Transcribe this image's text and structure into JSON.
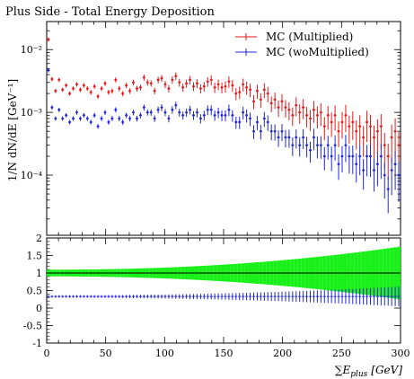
{
  "title": "Plus Side - Total Energy Deposition",
  "ylabel": "1/N dN/dE [GeV⁻¹]",
  "xlabel": "∑E",
  "xlabel_sub": "plus",
  "xlabel_unit": "[GeV]",
  "colors": {
    "mc_multiplied": "#e8191b",
    "mc_womultiplied": "#1f28d9",
    "band": "#19f019",
    "ratio_ref": "#000000"
  },
  "chart_data": [
    {
      "type": "scatter",
      "title": "Plus Side - Total Energy Deposition",
      "xlabel": "∑E_plus [GeV]",
      "ylabel": "1/N dN/dE [GeV^-1]",
      "yscale": "log",
      "xlim": [
        0,
        300
      ],
      "ylim": [
        1.1e-05,
        0.028
      ],
      "ytick_labels": [
        "10⁻⁴",
        "10⁻³",
        "10⁻²"
      ],
      "legend_position": "top-right",
      "legend": [
        "MC (Multiplied)",
        "MC (woMultiplied)"
      ],
      "series": [
        {
          "name": "MC (Multiplied)",
          "x": [
            1.5,
            4.5,
            7.5,
            10.5,
            13.5,
            16.5,
            19.5,
            22.5,
            25.5,
            28.5,
            31.5,
            34.5,
            37.5,
            40.5,
            43.5,
            46.5,
            49.5,
            52.5,
            55.5,
            58.5,
            61.5,
            64.5,
            67.5,
            70.5,
            73.5,
            76.5,
            79.5,
            82.5,
            85.5,
            88.5,
            91.5,
            94.5,
            97.5,
            100.5,
            103.5,
            106.5,
            109.5,
            112.5,
            115.5,
            118.5,
            121.5,
            124.5,
            127.5,
            130.5,
            133.5,
            136.5,
            139.5,
            142.5,
            145.5,
            148.5,
            151.5,
            154.5,
            157.5,
            160.5,
            163.5,
            166.5,
            169.5,
            172.5,
            175.5,
            178.5,
            181.5,
            184.5,
            187.5,
            190.5,
            193.5,
            196.5,
            199.5,
            202.5,
            205.5,
            208.5,
            211.5,
            214.5,
            217.5,
            220.5,
            223.5,
            226.5,
            229.5,
            232.5,
            235.5,
            238.5,
            241.5,
            244.5,
            247.5,
            250.5,
            253.5,
            256.5,
            259.5,
            262.5,
            265.5,
            268.5,
            271.5,
            274.5,
            277.5,
            280.5,
            283.5,
            286.5,
            289.5,
            292.5,
            295.5,
            298.5
          ],
          "y": [
            0.0145,
            0.0034,
            0.0022,
            0.0033,
            0.0023,
            0.0027,
            0.002,
            0.0024,
            0.0028,
            0.0023,
            0.0027,
            0.0024,
            0.0021,
            0.0026,
            0.0018,
            0.0024,
            0.0029,
            0.0021,
            0.0022,
            0.0033,
            0.0024,
            0.002,
            0.0027,
            0.0022,
            0.003,
            0.0024,
            0.0025,
            0.0036,
            0.003,
            0.0029,
            0.0022,
            0.0033,
            0.0035,
            0.0028,
            0.0024,
            0.0033,
            0.0038,
            0.003,
            0.0025,
            0.0029,
            0.0033,
            0.0026,
            0.0029,
            0.0024,
            0.0026,
            0.0031,
            0.0033,
            0.0025,
            0.0028,
            0.0025,
            0.0026,
            0.0031,
            0.0027,
            0.002,
            0.0021,
            0.0028,
            0.0025,
            0.0023,
            0.0015,
            0.0022,
            0.0016,
            0.0023,
            0.002,
            0.0014,
            0.0016,
            0.0012,
            0.0015,
            0.0012,
            0.0011,
            0.0009,
            0.0013,
            0.001,
            0.0012,
            0.0009,
            0.0008,
            0.0011,
            0.0009,
            0.001,
            0.0006,
            0.0009,
            0.0007,
            0.0009,
            0.0005,
            0.0007,
            0.0009,
            0.0006,
            0.0007,
            0.0005,
            0.0006,
            0.0004,
            0.0007,
            0.0006,
            0.0004,
            0.0005,
            0.0006,
            0.0003,
            0.0002,
            0.0004,
            0.0005,
            0.0003
          ]
        },
        {
          "name": "MC (woMultiplied)",
          "x": [
            1.5,
            4.5,
            7.5,
            10.5,
            13.5,
            16.5,
            19.5,
            22.5,
            25.5,
            28.5,
            31.5,
            34.5,
            37.5,
            40.5,
            43.5,
            46.5,
            49.5,
            52.5,
            55.5,
            58.5,
            61.5,
            64.5,
            67.5,
            70.5,
            73.5,
            76.5,
            79.5,
            82.5,
            85.5,
            88.5,
            91.5,
            94.5,
            97.5,
            100.5,
            103.5,
            106.5,
            109.5,
            112.5,
            115.5,
            118.5,
            121.5,
            124.5,
            127.5,
            130.5,
            133.5,
            136.5,
            139.5,
            142.5,
            145.5,
            148.5,
            151.5,
            154.5,
            157.5,
            160.5,
            163.5,
            166.5,
            169.5,
            172.5,
            175.5,
            178.5,
            181.5,
            184.5,
            187.5,
            190.5,
            193.5,
            196.5,
            199.5,
            202.5,
            205.5,
            208.5,
            211.5,
            214.5,
            217.5,
            220.5,
            223.5,
            226.5,
            229.5,
            232.5,
            235.5,
            238.5,
            241.5,
            244.5,
            247.5,
            250.5,
            253.5,
            256.5,
            259.5,
            262.5,
            265.5,
            268.5,
            271.5,
            274.5,
            277.5,
            280.5,
            283.5,
            286.5,
            289.5,
            292.5,
            295.5,
            298.5
          ],
          "y": [
            0.0047,
            0.0012,
            0.0008,
            0.0011,
            0.0008,
            0.0009,
            0.0007,
            0.0008,
            0.001,
            0.0008,
            0.0009,
            0.0008,
            0.0007,
            0.0009,
            0.0006,
            0.0008,
            0.001,
            0.0007,
            0.0008,
            0.0011,
            0.0008,
            0.0007,
            0.0009,
            0.0008,
            0.001,
            0.0008,
            0.0009,
            0.0012,
            0.001,
            0.001,
            0.0008,
            0.0011,
            0.0012,
            0.001,
            0.0008,
            0.0011,
            0.0013,
            0.001,
            0.0009,
            0.001,
            0.0011,
            0.0009,
            0.001,
            0.0008,
            0.0009,
            0.0011,
            0.0011,
            0.0009,
            0.001,
            0.0009,
            0.0009,
            0.0011,
            0.0009,
            0.0007,
            0.0007,
            0.001,
            0.0009,
            0.0008,
            0.0005,
            0.0007,
            0.0005,
            0.0008,
            0.0007,
            0.0005,
            0.0005,
            0.0004,
            0.0005,
            0.0004,
            0.0004,
            0.0003,
            0.0004,
            0.0003,
            0.0004,
            0.0003,
            0.00025,
            0.0004,
            0.0003,
            0.0003,
            0.0002,
            0.0003,
            0.0002,
            0.0003,
            0.00015,
            0.0002,
            0.0003,
            0.0002,
            0.0002,
            0.00015,
            0.0002,
            0.00012,
            0.0002,
            0.0002,
            0.00012,
            0.00015,
            0.0002,
            0.0001,
            6e-05,
            0.00012,
            0.00015,
            0.0001
          ]
        }
      ]
    },
    {
      "type": "scatter",
      "xlabel": "∑E_plus [GeV]",
      "xlim": [
        0,
        300
      ],
      "ylim": [
        -1,
        2
      ],
      "xticks": [
        0,
        50,
        100,
        150,
        200,
        250,
        300
      ],
      "yticks": [
        -1,
        -0.5,
        0,
        0.5,
        1,
        1.5,
        2
      ],
      "reference_line": 1,
      "series": [
        {
          "name": "MC (Multiplied)",
          "constant_value": 1.0,
          "band": "uncertainty band around 1, widening with x"
        },
        {
          "name": "MC (woMultiplied)",
          "constant_value": 0.33
        }
      ]
    }
  ]
}
